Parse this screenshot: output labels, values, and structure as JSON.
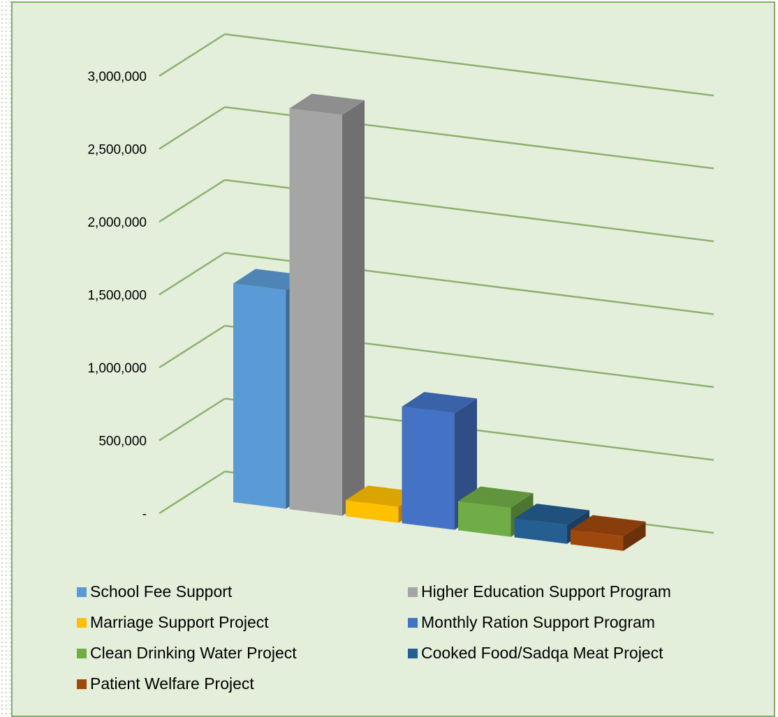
{
  "chart_data": {
    "type": "bar",
    "title": "",
    "xlabel": "",
    "ylabel": "",
    "ylim": [
      0,
      3000000
    ],
    "grid": true,
    "legend_position": "bottom",
    "y_ticks": [
      "-",
      "500,000",
      "1,000,000",
      "1,500,000",
      "2,000,000",
      "2,500,000",
      "3,000,000"
    ],
    "series": [
      {
        "name": "School Fee Support",
        "value": 1500000,
        "color": "#5b9bd5"
      },
      {
        "name": "Higher Education Support Program",
        "value": 2750000,
        "color": "#a5a5a5"
      },
      {
        "name": "Marriage Support Project",
        "value": 110000,
        "color": "#ffc000"
      },
      {
        "name": "Monthly Ration Support Program",
        "value": 800000,
        "color": "#4472c4"
      },
      {
        "name": "Clean Drinking Water Project",
        "value": 200000,
        "color": "#70ad47"
      },
      {
        "name": "Cooked Food/Sadqa Meat Project",
        "value": 130000,
        "color": "#255e91"
      },
      {
        "name": "Patient Welfare Project",
        "value": 100000,
        "color": "#9e480e"
      }
    ]
  }
}
